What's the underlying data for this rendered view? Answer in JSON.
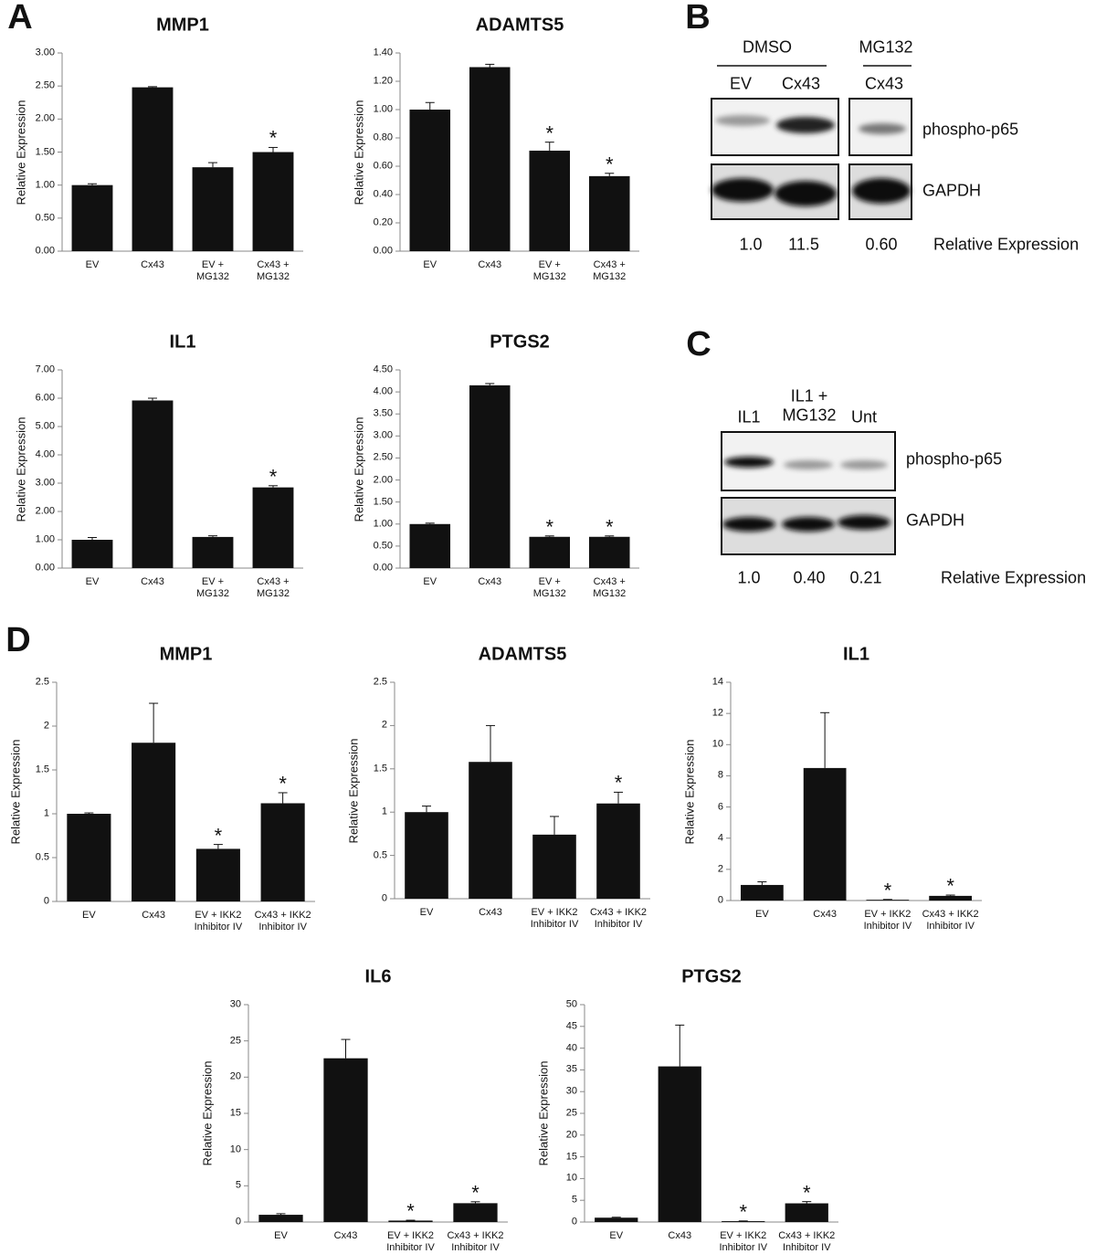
{
  "panel_labels": [
    "A",
    "B",
    "C",
    "D"
  ],
  "chart_data": [
    {
      "type": "bar",
      "title": "MMP1",
      "y_label": "Relative Expression",
      "color": "#111111",
      "categories": [
        "EV",
        "Cx43",
        "EV +\nMG132",
        "Cx43 +\nMG132"
      ],
      "values": [
        1.0,
        2.48,
        1.27,
        1.5
      ],
      "errors": [
        0.02,
        0.01,
        0.07,
        0.07
      ],
      "markers": [
        null,
        null,
        null,
        "*"
      ],
      "ylim": [
        0,
        3
      ],
      "yticks": [
        {
          "value": 0,
          "label": "0.00"
        },
        {
          "value": 0.5,
          "label": "0.50"
        },
        {
          "value": 1,
          "label": "1.00"
        },
        {
          "value": 1.5,
          "label": "1.50"
        },
        {
          "value": 2,
          "label": "2.00"
        },
        {
          "value": 2.5,
          "label": "2.50"
        },
        {
          "value": 3,
          "label": "3.00"
        }
      ]
    },
    {
      "type": "bar",
      "title": "ADAMTS5",
      "y_label": "Relative Expression",
      "color": "#111111",
      "categories": [
        "EV",
        "Cx43",
        "EV +\nMG132",
        "Cx43 +\nMG132"
      ],
      "values": [
        1.0,
        1.3,
        0.71,
        0.53
      ],
      "errors": [
        0.05,
        0.02,
        0.06,
        0.02
      ],
      "markers": [
        null,
        null,
        "*",
        "*"
      ],
      "ylim": [
        0,
        1.4
      ],
      "yticks": [
        {
          "value": 0,
          "label": "0.00"
        },
        {
          "value": 0.2,
          "label": "0.20"
        },
        {
          "value": 0.4,
          "label": "0.40"
        },
        {
          "value": 0.6,
          "label": "0.60"
        },
        {
          "value": 0.8,
          "label": "0.80"
        },
        {
          "value": 1,
          "label": "1.00"
        },
        {
          "value": 1.2,
          "label": "1.20"
        },
        {
          "value": 1.4,
          "label": "1.40"
        }
      ]
    },
    {
      "type": "bar",
      "title": "IL1",
      "y_label": "Relative Expression",
      "color": "#111111",
      "categories": [
        "EV",
        "Cx43",
        "EV +\nMG132",
        "Cx43 +\nMG132"
      ],
      "values": [
        1.0,
        5.92,
        1.1,
        2.85
      ],
      "errors": [
        0.08,
        0.08,
        0.04,
        0.06
      ],
      "markers": [
        null,
        null,
        null,
        "*"
      ],
      "ylim": [
        0,
        7
      ],
      "yticks": [
        {
          "value": 0,
          "label": "0.00"
        },
        {
          "value": 1,
          "label": "1.00"
        },
        {
          "value": 2,
          "label": "2.00"
        },
        {
          "value": 3,
          "label": "3.00"
        },
        {
          "value": 4,
          "label": "4.00"
        },
        {
          "value": 5,
          "label": "5.00"
        },
        {
          "value": 6,
          "label": "6.00"
        },
        {
          "value": 7,
          "label": "7.00"
        }
      ]
    },
    {
      "type": "bar",
      "title": "PTGS2",
      "y_label": "Relative Expression",
      "color": "#111111",
      "categories": [
        "EV",
        "Cx43",
        "EV +\nMG132",
        "Cx43 +\nMG132"
      ],
      "values": [
        1.0,
        4.15,
        0.71,
        0.71
      ],
      "errors": [
        0.02,
        0.04,
        0.02,
        0.02
      ],
      "markers": [
        null,
        null,
        "*",
        "*"
      ],
      "ylim": [
        0,
        4.5
      ],
      "yticks": [
        {
          "value": 0,
          "label": "0.00"
        },
        {
          "value": 0.5,
          "label": "0.50"
        },
        {
          "value": 1,
          "label": "1.00"
        },
        {
          "value": 1.5,
          "label": "1.50"
        },
        {
          "value": 2,
          "label": "2.00"
        },
        {
          "value": 2.5,
          "label": "2.50"
        },
        {
          "value": 3,
          "label": "3.00"
        },
        {
          "value": 3.5,
          "label": "3.50"
        },
        {
          "value": 4,
          "label": "4.00"
        },
        {
          "value": 4.5,
          "label": "4.50"
        }
      ]
    },
    {
      "type": "bar",
      "title": "MMP1",
      "y_label": "Relative Expression",
      "color": "#111111",
      "categories": [
        "EV",
        "Cx43",
        "EV + IKK2\nInhibitor IV",
        "Cx43 + IKK2\nInhibitor IV"
      ],
      "values": [
        1.0,
        1.81,
        0.6,
        1.12
      ],
      "errors": [
        0.01,
        0.45,
        0.05,
        0.12
      ],
      "markers": [
        null,
        null,
        "*",
        "*"
      ],
      "ylim": [
        0,
        2.5
      ],
      "yticks": [
        0,
        0.5,
        1,
        1.5,
        2,
        2.5
      ]
    },
    {
      "type": "bar",
      "title": "ADAMTS5",
      "y_label": "Relative Expression",
      "color": "#111111",
      "categories": [
        "EV",
        "Cx43",
        "EV + IKK2\nInhibitor IV",
        "Cx43 + IKK2\nInhibitor IV"
      ],
      "values": [
        1.0,
        1.58,
        0.74,
        1.1
      ],
      "errors": [
        0.07,
        0.42,
        0.21,
        0.13
      ],
      "markers": [
        null,
        null,
        null,
        "*"
      ],
      "ylim": [
        0,
        2.5
      ],
      "yticks": [
        0,
        0.5,
        1,
        1.5,
        2,
        2.5
      ]
    },
    {
      "type": "bar",
      "title": "IL1",
      "y_label": "Relative Expression",
      "color": "#111111",
      "categories": [
        "EV",
        "Cx43",
        "EV + IKK2\nInhibitor IV",
        "Cx43 + IKK2\nInhibitor IV"
      ],
      "values": [
        1.0,
        8.5,
        0.05,
        0.3
      ],
      "errors": [
        0.2,
        3.55,
        0.02,
        0.05
      ],
      "markers": [
        null,
        null,
        "*",
        "*"
      ],
      "ylim": [
        0,
        14
      ],
      "yticks": [
        0,
        2,
        4,
        6,
        8,
        10,
        12,
        14
      ]
    },
    {
      "type": "bar",
      "title": "IL6",
      "y_label": "Relative Expression",
      "color": "#111111",
      "categories": [
        "EV",
        "Cx43",
        "EV + IKK2\nInhibitor IV",
        "Cx43 + IKK2\nInhibitor IV"
      ],
      "values": [
        1.0,
        22.6,
        0.2,
        2.6
      ],
      "errors": [
        0.15,
        2.6,
        0.05,
        0.2
      ],
      "markers": [
        null,
        null,
        "*",
        "*"
      ],
      "ylim": [
        0,
        30
      ],
      "yticks": [
        0,
        5,
        10,
        15,
        20,
        25,
        30
      ]
    },
    {
      "type": "bar",
      "title": "PTGS2",
      "y_label": "Relative Expression",
      "color": "#111111",
      "categories": [
        "EV",
        "Cx43",
        "EV + IKK2\nInhibitor IV",
        "Cx43 + IKK2\nInhibitor IV"
      ],
      "values": [
        1.0,
        35.8,
        0.2,
        4.3
      ],
      "errors": [
        0.1,
        9.5,
        0.05,
        0.4
      ],
      "markers": [
        null,
        null,
        "*",
        "*"
      ],
      "ylim": [
        0,
        50
      ],
      "yticks": [
        0,
        5,
        10,
        15,
        20,
        25,
        30,
        35,
        40,
        45,
        50
      ]
    }
  ],
  "blots": [
    {
      "groups": [
        {
          "label": "DMSO",
          "lanes": [
            "EV",
            "Cx43"
          ]
        },
        {
          "label": "MG132",
          "lanes": [
            "Cx43"
          ]
        }
      ],
      "rows": [
        "phospho-p65",
        "GAPDH"
      ],
      "relative_expression": [
        "1.0",
        "11.5",
        "0.60"
      ],
      "quantification_label": "Relative Expression"
    },
    {
      "lanes": [
        "IL1",
        "IL1 +\nMG132",
        "Unt"
      ],
      "rows": [
        "phospho-p65",
        "GAPDH"
      ],
      "relative_expression": [
        "1.0",
        "0.40",
        "0.21"
      ],
      "quantification_label": "Relative Expression"
    }
  ]
}
